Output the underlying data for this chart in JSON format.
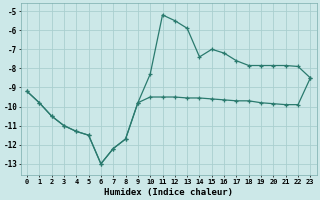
{
  "xlabel": "Humidex (Indice chaleur)",
  "xlim": [
    -0.5,
    23.5
  ],
  "ylim": [
    -13.6,
    -4.6
  ],
  "xticks": [
    0,
    1,
    2,
    3,
    4,
    5,
    6,
    7,
    8,
    9,
    10,
    11,
    12,
    13,
    14,
    15,
    16,
    17,
    18,
    19,
    20,
    21,
    22,
    23
  ],
  "yticks": [
    -5,
    -6,
    -7,
    -8,
    -9,
    -10,
    -11,
    -12,
    -13
  ],
  "line_color": "#2a7a6e",
  "bg_color": "#cce8e8",
  "grid_color": "#aacfcf",
  "upper_x": [
    0,
    1,
    2,
    3,
    4,
    5,
    6,
    7,
    8,
    9,
    10,
    11,
    12,
    13,
    14,
    15,
    16,
    17,
    18,
    19,
    20,
    21,
    22,
    23
  ],
  "upper_y": [
    -9.2,
    -9.8,
    -10.5,
    -11.0,
    -11.3,
    -11.5,
    -13.0,
    -12.2,
    -11.7,
    -9.8,
    -8.3,
    -5.2,
    -5.5,
    -5.9,
    -7.4,
    -7.0,
    -7.2,
    -7.6,
    -7.85,
    -7.85,
    -7.85,
    -7.85,
    -7.9,
    -8.5
  ],
  "lower_x": [
    0,
    1,
    2,
    3,
    4,
    5,
    6,
    7,
    8,
    9,
    10,
    11,
    12,
    13,
    14,
    15,
    16,
    17,
    18,
    19,
    20,
    21,
    22,
    23
  ],
  "lower_y": [
    -9.2,
    -9.8,
    -10.5,
    -11.0,
    -11.3,
    -11.5,
    -13.0,
    -12.2,
    -11.7,
    -9.8,
    -9.5,
    -9.5,
    -9.5,
    -9.55,
    -9.55,
    -9.6,
    -9.65,
    -9.7,
    -9.7,
    -9.8,
    -9.85,
    -9.9,
    -9.9,
    -8.5
  ]
}
